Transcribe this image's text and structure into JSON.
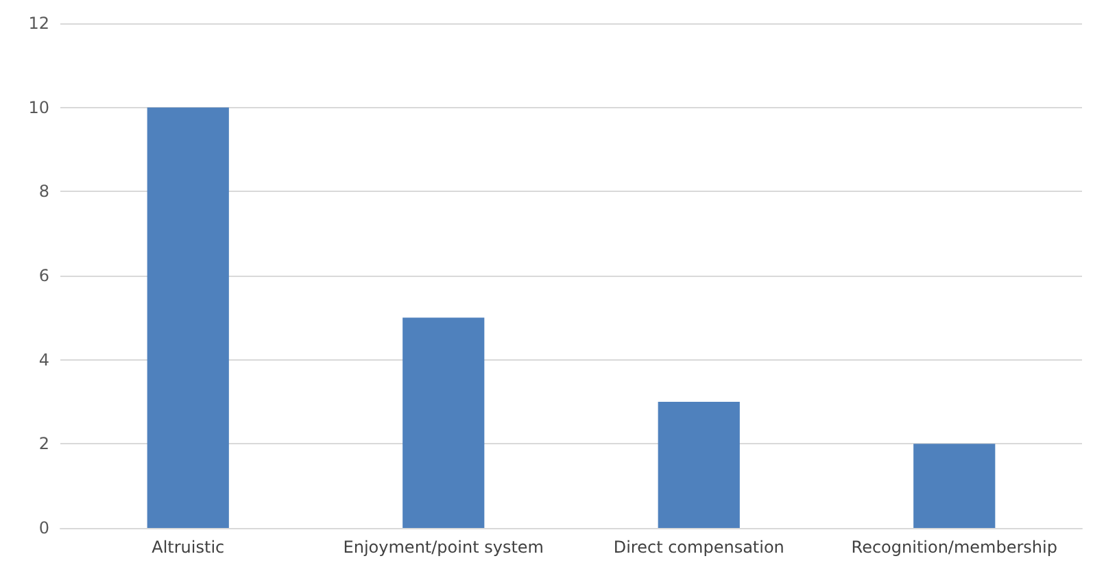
{
  "chart_data": {
    "type": "bar",
    "categories": [
      "Altruistic",
      "Enjoyment/point system",
      "Direct compensation",
      "Recognition/membership"
    ],
    "values": [
      10,
      5,
      3,
      2
    ],
    "color": "#4f81bd",
    "ylim": [
      0,
      12
    ],
    "yticks": [
      0,
      2,
      4,
      6,
      8,
      10,
      12
    ],
    "grid": "y"
  }
}
